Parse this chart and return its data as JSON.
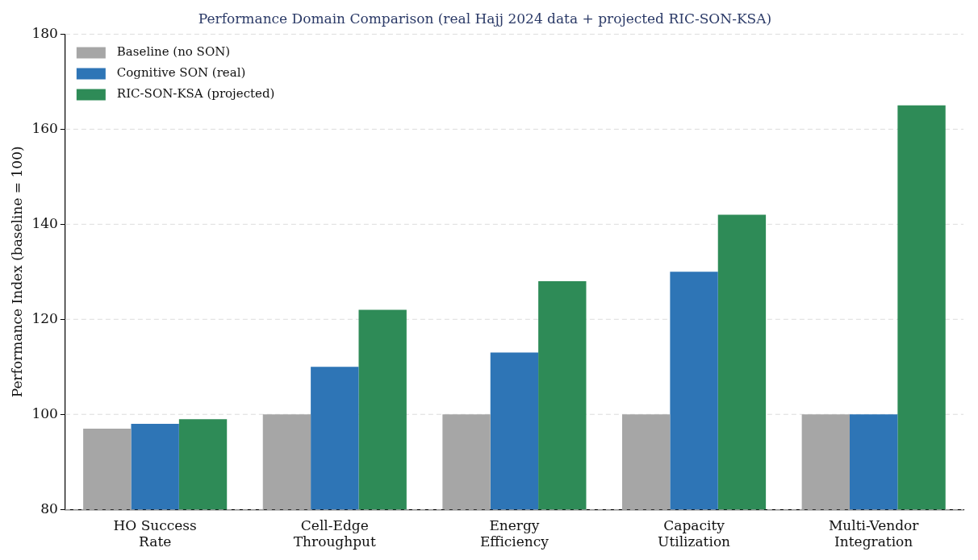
{
  "chart_data": {
    "type": "bar",
    "title": "Performance Domain Comparison (real Hajj 2024 data + projected RIC-SON-KSA)",
    "ylabel": "Performance Index (baseline = 100)",
    "categories": [
      "HO Success\nRate",
      "Cell-Edge\nThroughput",
      "Energy\nEfficiency",
      "Capacity\nUtilization",
      "Multi-Vendor\nIntegration"
    ],
    "series": [
      {
        "name": "Baseline (no SON)",
        "color": "#a6a6a6",
        "values": [
          97,
          100,
          100,
          100,
          100
        ]
      },
      {
        "name": "Cognitive SON (real)",
        "color": "#2e75b6",
        "values": [
          98,
          110,
          113,
          130,
          100
        ]
      },
      {
        "name": "RIC-SON-KSA (projected)",
        "color": "#2e8b57",
        "values": [
          99,
          122,
          128,
          142,
          165
        ]
      }
    ],
    "ylim": [
      80,
      180
    ],
    "yticks": [
      80,
      100,
      120,
      140,
      160,
      180
    ],
    "grid": "y",
    "legend": "top left"
  }
}
